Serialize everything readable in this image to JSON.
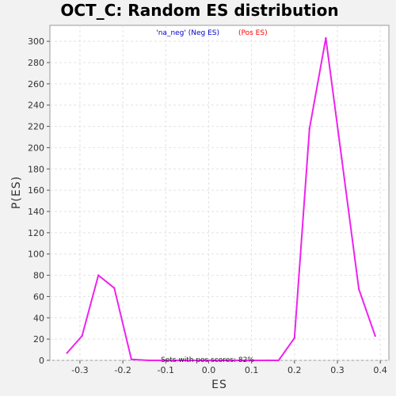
{
  "chart_data": {
    "type": "line",
    "title": "OCT_C: Random ES distribution",
    "xlabel": "ES",
    "ylabel": "P(ES)",
    "xlim": [
      -0.37,
      0.42
    ],
    "ylim": [
      0,
      315
    ],
    "x_ticks": [
      -0.3,
      -0.2,
      -0.1,
      0.0,
      0.1,
      0.2,
      0.3,
      0.4
    ],
    "x_tick_labels": [
      "-0.3",
      "-0.2",
      "-0.1",
      "0.0",
      "0.1",
      "0.2",
      "0.3",
      "0.4"
    ],
    "y_ticks": [
      0,
      20,
      40,
      60,
      80,
      100,
      120,
      140,
      160,
      180,
      200,
      220,
      240,
      260,
      280,
      300
    ],
    "grid": true,
    "legend": {
      "placement": "top-center",
      "entries": [
        {
          "text": "'na_neg' (Neg ES)",
          "color": "#0000cc"
        },
        {
          "text": "(Pos ES)",
          "color": "#ff0000"
        }
      ]
    },
    "annotation": "Sets with pos scores: 82%",
    "line_color": "#ee22ee",
    "series": [
      {
        "x": [
          -0.33,
          -0.295,
          -0.257,
          -0.22,
          -0.18,
          -0.14,
          -0.1,
          -0.06,
          -0.02,
          0.02,
          0.06,
          0.1,
          0.14,
          0.163,
          0.2,
          0.235,
          0.273,
          0.31,
          0.35,
          0.388
        ],
        "y": [
          7,
          23,
          80,
          68,
          1,
          0,
          0,
          0,
          0,
          0,
          0,
          0,
          0,
          0,
          21,
          218,
          303,
          190,
          67,
          23
        ]
      }
    ]
  }
}
